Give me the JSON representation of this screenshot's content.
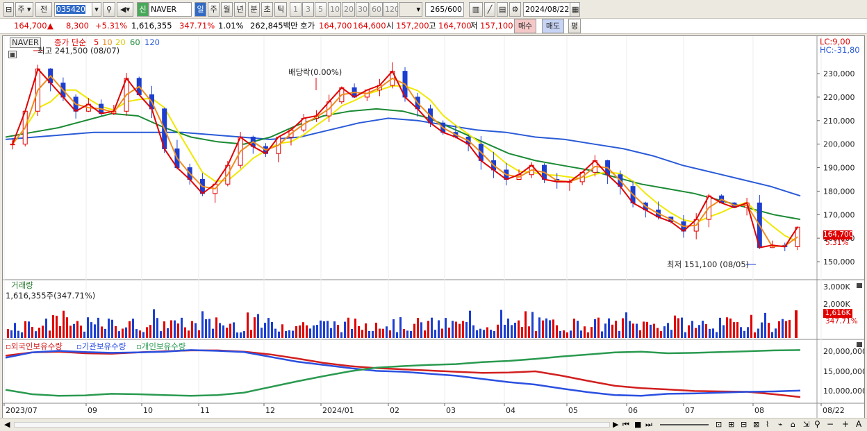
{
  "toolbar": {
    "market": "주",
    "kind": "전",
    "code": "035420",
    "name": "NAVER",
    "new_badge": "신",
    "periods": [
      "일",
      "주",
      "월",
      "년",
      "분",
      "초",
      "틱"
    ],
    "intervals": [
      "1",
      "3",
      "5",
      "10",
      "20",
      "30",
      "60",
      "120"
    ],
    "count": "265/600",
    "date": "2024/08/22"
  },
  "quote": {
    "price": "164,700",
    "arrow": "▲",
    "change": "8,300",
    "pct": "+5.31%",
    "volume": "1,616,355",
    "vol_ratio": "347.71%",
    "turnover": "1.01%",
    "amount": "262,845백만",
    "hoga_label": "호가",
    "ask": "164,700",
    "bid": "164,600",
    "open_label": "시",
    "open": "157,200",
    "high_label": "고",
    "high": "164,700",
    "low_label": "저",
    "low": "157,100",
    "buy": "매수",
    "sell": "매도",
    "eval": "평"
  },
  "legend": {
    "name": "NAVER",
    "ma_label": "종가 단순",
    "periods": [
      "5",
      "10",
      "20",
      "60",
      "120"
    ],
    "lc": "LC:9,00",
    "hc": "HC:-31,80"
  },
  "annotations": {
    "high": "최고 241,500 (08/07)",
    "low": "최저 151,100 (08/05)",
    "dividend": "배당락(0.00%)"
  },
  "price_axis": [
    "230,000",
    "220,000",
    "210,000",
    "200,000",
    "190,000",
    "180,000",
    "170,000",
    "160,000",
    "150,000"
  ],
  "price_tag": "164,700",
  "pct_tag": "5.31%",
  "volume": {
    "title": "거래량",
    "value": "1,616,355주(347.71%)",
    "axis": [
      "3,000K",
      "2,000K"
    ],
    "tag": "1,616K",
    "tag_pct": "347.71%"
  },
  "holdings": {
    "labels": [
      "외국인보유수량",
      "기관보유수량",
      "개인보유수량"
    ],
    "axis": [
      "20,000,000",
      "15,000,000",
      "10,000,000"
    ]
  },
  "x_axis": [
    "2023/07",
    "09",
    "10",
    "11",
    "12",
    "2024/01",
    "02",
    "03",
    "04",
    "05",
    "06",
    "07",
    "08",
    "08/22"
  ],
  "colors": {
    "up": "#e00000",
    "down": "#1c3fd0",
    "ma5": "#e00000",
    "ma10": "#f08c1e",
    "ma20": "#f0e800",
    "ma60": "#1b8a35",
    "ma120": "#2a5bd7",
    "foreign": "#d21f1f",
    "inst": "#2b50e0",
    "indiv": "#2a9a50"
  },
  "chart_data": {
    "type": "candlestick",
    "x_range": [
      "2023/07",
      "2024/08/22"
    ],
    "price_range": [
      145000,
      243000
    ],
    "closes": [
      200000,
      214000,
      232000,
      226000,
      220000,
      214000,
      217000,
      213000,
      214000,
      228000,
      221000,
      215000,
      198000,
      190000,
      185000,
      179000,
      183000,
      191000,
      203000,
      199000,
      196000,
      203000,
      206000,
      211000,
      212000,
      218000,
      224000,
      220000,
      223000,
      225000,
      231000,
      220000,
      215000,
      209000,
      205000,
      203000,
      200000,
      193000,
      189000,
      185000,
      187000,
      191000,
      185000,
      184000,
      184000,
      188000,
      193000,
      187000,
      182000,
      175000,
      172000,
      169000,
      167000,
      163000,
      168000,
      178000,
      175000,
      173000,
      175000,
      156000,
      157000,
      156400,
      164700
    ],
    "ma60": [
      203000,
      205000,
      207000,
      210000,
      213000,
      212000,
      207000,
      203000,
      201000,
      200000,
      203000,
      208000,
      212000,
      214000,
      215000,
      214000,
      211000,
      206000,
      201000,
      196000,
      193000,
      191000,
      189000,
      186000,
      183000,
      181000,
      179000,
      176000,
      173000,
      170000,
      168000
    ],
    "ma120": [
      202000,
      203000,
      204000,
      205000,
      205000,
      205000,
      205000,
      204000,
      203000,
      202000,
      203000,
      206000,
      209000,
      211000,
      210000,
      208000,
      206000,
      205000,
      203000,
      202000,
      200000,
      198000,
      195000,
      191000,
      188000,
      185000,
      182000,
      178000
    ],
    "volume_k": [
      {
        "date": "2024/08/22",
        "value": 1616
      }
    ],
    "holdings_range": [
      8000000,
      22000000
    ]
  }
}
